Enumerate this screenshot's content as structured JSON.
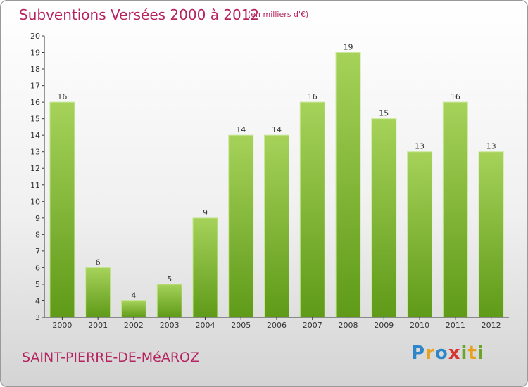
{
  "header": {
    "title": "Subventions Versées 2000 à 2012",
    "unit": "(en milliers d'€)"
  },
  "footer": {
    "place": "SAINT-PIERRE-DE-MéAROZ",
    "logo_letters": [
      {
        "ch": "P",
        "color": "#2e86c8"
      },
      {
        "ch": "r",
        "color": "#e6a21e"
      },
      {
        "ch": "o",
        "color": "#2e86c8"
      },
      {
        "ch": "x",
        "color": "#d6362f"
      },
      {
        "ch": "i",
        "color": "#6aa428"
      },
      {
        "ch": "t",
        "color": "#e6a21e"
      },
      {
        "ch": "i",
        "color": "#6aa428"
      }
    ]
  },
  "colors": {
    "bar_top": "#a6d25a",
    "bar_bottom": "#5f9a18",
    "bar_edge": "#c9e79a",
    "title": "#b5245f",
    "axis": "#333333"
  },
  "chart_data": {
    "type": "bar",
    "title": "Subventions Versées 2000 à 2012",
    "xlabel": "",
    "ylabel": "",
    "categories": [
      "2000",
      "2001",
      "2002",
      "2003",
      "2004",
      "2005",
      "2006",
      "2007",
      "2008",
      "2009",
      "2010",
      "2011",
      "2012"
    ],
    "values": [
      16,
      6,
      4,
      5,
      9,
      14,
      14,
      16,
      19,
      15,
      13,
      16,
      13
    ],
    "ylim": [
      3,
      20
    ],
    "yticks": [
      3,
      4,
      5,
      6,
      7,
      8,
      9,
      10,
      11,
      12,
      13,
      14,
      15,
      16,
      17,
      18,
      19,
      20
    ],
    "grid": false,
    "data_labels": true
  }
}
